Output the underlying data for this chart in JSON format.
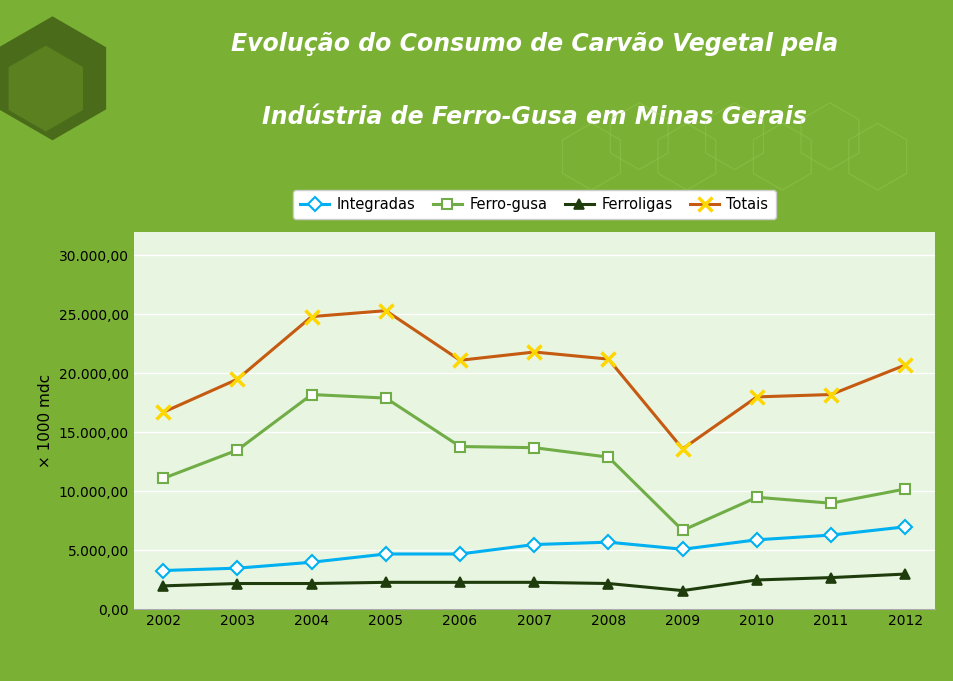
{
  "title_line1": "Evolução do Consumo de Carvão Vegetal pela",
  "title_line2": "Indústria de Ferro-Gusa em Minas Gerais",
  "title_color": "#ffffff",
  "header_bg_top": "#8ab83a",
  "header_bg_bottom": "#6e9e28",
  "outer_bg_color": "#7ab135",
  "chart_bg_color": "#e8f5e0",
  "chart_frame_color": "#cccccc",
  "years": [
    2002,
    2003,
    2004,
    2005,
    2006,
    2007,
    2008,
    2009,
    2010,
    2011,
    2012
  ],
  "integradas": [
    3300,
    3500,
    4000,
    4700,
    4700,
    5500,
    5700,
    5100,
    5900,
    6300,
    7000
  ],
  "ferro_gusa": [
    11100,
    13500,
    18200,
    17900,
    13800,
    13700,
    12900,
    6700,
    9500,
    9000,
    10200
  ],
  "ferroligas": [
    2000,
    2200,
    2200,
    2300,
    2300,
    2300,
    2200,
    1600,
    2500,
    2700,
    3000
  ],
  "totais": [
    16700,
    19500,
    24800,
    25300,
    21100,
    21800,
    21200,
    13600,
    18000,
    18200,
    20700
  ],
  "series_labels": [
    "Integradas",
    "Ferro-gusa",
    "Ferroligas",
    "Totais"
  ],
  "integradas_color": "#00b0f0",
  "ferro_gusa_color": "#70ad47",
  "ferroligas_color": "#1f3d0c",
  "totais_color": "#c55a11",
  "totais_marker_color": "#ffd700",
  "ylabel": "× 1000 mdc",
  "ylim": [
    0,
    32000
  ],
  "yticks": [
    0,
    5000,
    10000,
    15000,
    20000,
    25000,
    30000
  ],
  "title_fontsize": 17,
  "legend_fontsize": 10.5,
  "axis_fontsize": 10
}
